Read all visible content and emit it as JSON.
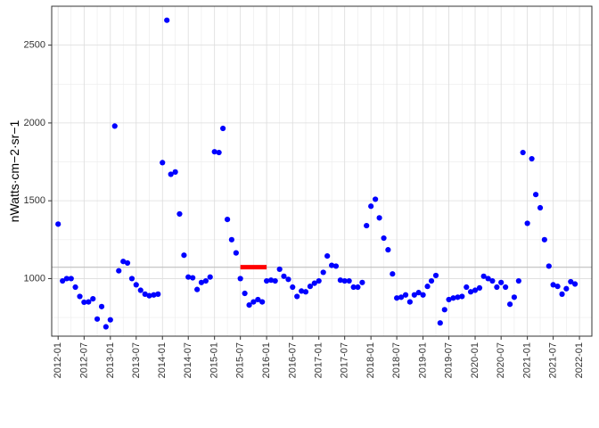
{
  "chart_data": {
    "type": "scatter",
    "ylabel": "nWatts·cm−2·sr−1",
    "xlabel": "",
    "title": "",
    "xlim": [
      "2011-11-17",
      "2022-03-29"
    ],
    "ylim": [
      630,
      2750
    ],
    "x_ticks": [
      "2012-01",
      "2012-07",
      "2013-01",
      "2013-07",
      "2014-01",
      "2014-07",
      "2015-01",
      "2015-07",
      "2016-01",
      "2016-07",
      "2017-01",
      "2017-07",
      "2018-01",
      "2018-07",
      "2019-01",
      "2019-07",
      "2020-01",
      "2020-07",
      "2021-01",
      "2021-07",
      "2022-01"
    ],
    "y_ticks": [
      1000,
      1500,
      2000,
      2500
    ],
    "grid": true,
    "colors": {
      "points": "#0000ff",
      "baseline": "#bfbfbf",
      "highlight": "#ff0000"
    },
    "baseline_value": 1073,
    "highlight_segment": {
      "x_start": "2015-07",
      "x_end": "2016-01",
      "y": 1073
    },
    "points": [
      {
        "x": "2012-01",
        "y": 1350
      },
      {
        "x": "2012-02",
        "y": 985
      },
      {
        "x": "2012-03",
        "y": 1000
      },
      {
        "x": "2012-04",
        "y": 1000
      },
      {
        "x": "2012-05",
        "y": 945
      },
      {
        "x": "2012-06",
        "y": 885
      },
      {
        "x": "2012-07",
        "y": 848
      },
      {
        "x": "2012-08",
        "y": 850
      },
      {
        "x": "2012-09",
        "y": 870
      },
      {
        "x": "2012-10",
        "y": 740
      },
      {
        "x": "2012-11",
        "y": 820
      },
      {
        "x": "2012-12",
        "y": 690
      },
      {
        "x": "2013-01",
        "y": 735
      },
      {
        "x": "2013-02",
        "y": 1980
      },
      {
        "x": "2013-03",
        "y": 1050
      },
      {
        "x": "2013-04",
        "y": 1110
      },
      {
        "x": "2013-05",
        "y": 1100
      },
      {
        "x": "2013-06",
        "y": 1000
      },
      {
        "x": "2013-07",
        "y": 960
      },
      {
        "x": "2013-08",
        "y": 925
      },
      {
        "x": "2013-09",
        "y": 900
      },
      {
        "x": "2013-10",
        "y": 890
      },
      {
        "x": "2013-11",
        "y": 895
      },
      {
        "x": "2013-12",
        "y": 900
      },
      {
        "x": "2014-01",
        "y": 1745
      },
      {
        "x": "2014-02",
        "y": 2660
      },
      {
        "x": "2014-03",
        "y": 1670
      },
      {
        "x": "2014-04",
        "y": 1685
      },
      {
        "x": "2014-05",
        "y": 1415
      },
      {
        "x": "2014-06",
        "y": 1150
      },
      {
        "x": "2014-07",
        "y": 1010
      },
      {
        "x": "2014-08",
        "y": 1005
      },
      {
        "x": "2014-09",
        "y": 930
      },
      {
        "x": "2014-10",
        "y": 975
      },
      {
        "x": "2014-11",
        "y": 985
      },
      {
        "x": "2014-12",
        "y": 1010
      },
      {
        "x": "2015-01",
        "y": 1815
      },
      {
        "x": "2015-02",
        "y": 1810
      },
      {
        "x": "2015-03",
        "y": 1965
      },
      {
        "x": "2015-04",
        "y": 1380
      },
      {
        "x": "2015-05",
        "y": 1250
      },
      {
        "x": "2015-06",
        "y": 1165
      },
      {
        "x": "2015-07",
        "y": 1000
      },
      {
        "x": "2015-08",
        "y": 905
      },
      {
        "x": "2015-09",
        "y": 830
      },
      {
        "x": "2015-10",
        "y": 850
      },
      {
        "x": "2015-11",
        "y": 865
      },
      {
        "x": "2015-12",
        "y": 850
      },
      {
        "x": "2016-01",
        "y": 985
      },
      {
        "x": "2016-02",
        "y": 990
      },
      {
        "x": "2016-03",
        "y": 985
      },
      {
        "x": "2016-04",
        "y": 1060
      },
      {
        "x": "2016-05",
        "y": 1015
      },
      {
        "x": "2016-06",
        "y": 995
      },
      {
        "x": "2016-07",
        "y": 945
      },
      {
        "x": "2016-08",
        "y": 885
      },
      {
        "x": "2016-09",
        "y": 920
      },
      {
        "x": "2016-10",
        "y": 915
      },
      {
        "x": "2016-11",
        "y": 950
      },
      {
        "x": "2016-12",
        "y": 970
      },
      {
        "x": "2017-01",
        "y": 985
      },
      {
        "x": "2017-02",
        "y": 1040
      },
      {
        "x": "2017-03",
        "y": 1145
      },
      {
        "x": "2017-04",
        "y": 1085
      },
      {
        "x": "2017-05",
        "y": 1080
      },
      {
        "x": "2017-06",
        "y": 990
      },
      {
        "x": "2017-07",
        "y": 985
      },
      {
        "x": "2017-08",
        "y": 985
      },
      {
        "x": "2017-09",
        "y": 945
      },
      {
        "x": "2017-10",
        "y": 945
      },
      {
        "x": "2017-11",
        "y": 975
      },
      {
        "x": "2017-12",
        "y": 1340
      },
      {
        "x": "2018-01",
        "y": 1465
      },
      {
        "x": "2018-02",
        "y": 1510
      },
      {
        "x": "2018-03",
        "y": 1390
      },
      {
        "x": "2018-04",
        "y": 1260
      },
      {
        "x": "2018-05",
        "y": 1185
      },
      {
        "x": "2018-06",
        "y": 1030
      },
      {
        "x": "2018-07",
        "y": 875
      },
      {
        "x": "2018-08",
        "y": 880
      },
      {
        "x": "2018-09",
        "y": 895
      },
      {
        "x": "2018-10",
        "y": 850
      },
      {
        "x": "2018-11",
        "y": 895
      },
      {
        "x": "2018-12",
        "y": 910
      },
      {
        "x": "2019-01",
        "y": 895
      },
      {
        "x": "2019-02",
        "y": 950
      },
      {
        "x": "2019-03",
        "y": 985
      },
      {
        "x": "2019-04",
        "y": 1020
      },
      {
        "x": "2019-05",
        "y": 715
      },
      {
        "x": "2019-06",
        "y": 800
      },
      {
        "x": "2019-07",
        "y": 865
      },
      {
        "x": "2019-08",
        "y": 875
      },
      {
        "x": "2019-09",
        "y": 880
      },
      {
        "x": "2019-10",
        "y": 885
      },
      {
        "x": "2019-11",
        "y": 945
      },
      {
        "x": "2019-12",
        "y": 915
      },
      {
        "x": "2020-01",
        "y": 925
      },
      {
        "x": "2020-02",
        "y": 940
      },
      {
        "x": "2020-03",
        "y": 1015
      },
      {
        "x": "2020-04",
        "y": 1000
      },
      {
        "x": "2020-05",
        "y": 985
      },
      {
        "x": "2020-06",
        "y": 945
      },
      {
        "x": "2020-07",
        "y": 975
      },
      {
        "x": "2020-08",
        "y": 945
      },
      {
        "x": "2020-09",
        "y": 835
      },
      {
        "x": "2020-10",
        "y": 880
      },
      {
        "x": "2020-11",
        "y": 985
      },
      {
        "x": "2020-12",
        "y": 1810
      },
      {
        "x": "2021-01",
        "y": 1355
      },
      {
        "x": "2021-02",
        "y": 1770
      },
      {
        "x": "2021-03",
        "y": 1540
      },
      {
        "x": "2021-04",
        "y": 1455
      },
      {
        "x": "2021-05",
        "y": 1250
      },
      {
        "x": "2021-06",
        "y": 1080
      },
      {
        "x": "2021-07",
        "y": 960
      },
      {
        "x": "2021-08",
        "y": 950
      },
      {
        "x": "2021-09",
        "y": 900
      },
      {
        "x": "2021-10",
        "y": 935
      },
      {
        "x": "2021-11",
        "y": 980
      },
      {
        "x": "2021-12",
        "y": 965
      }
    ]
  }
}
